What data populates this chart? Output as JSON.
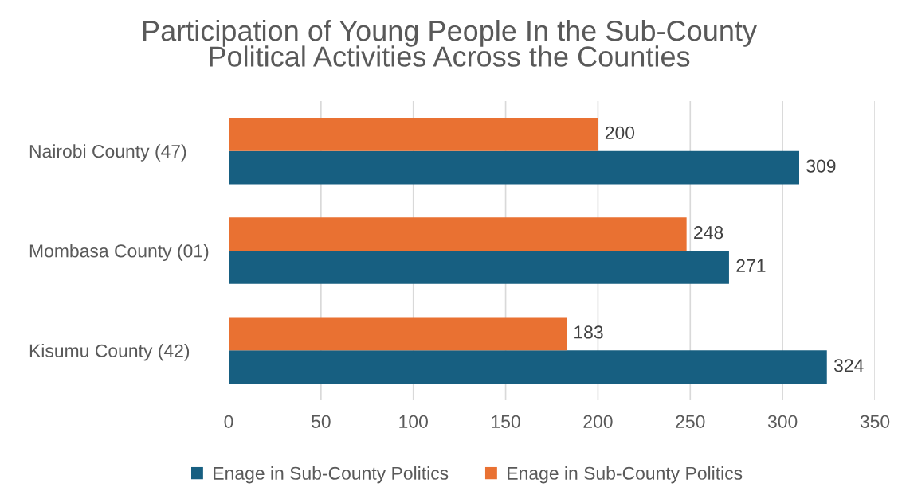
{
  "chart_data": {
    "type": "bar",
    "orientation": "horizontal",
    "title": "Participation of Young People In the Sub-County\nPolitical Activities Across the Counties",
    "categories": [
      "Nairobi County (47)",
      "Mombasa County (01)",
      "Kisumu County (42)"
    ],
    "series": [
      {
        "name": "Enage in Sub-County Politics",
        "color": "#175f81",
        "values": [
          309,
          271,
          324
        ]
      },
      {
        "name": "Enage in Sub-County Politics",
        "color": "#e97132",
        "values": [
          200,
          248,
          183
        ]
      }
    ],
    "xlim": [
      0,
      350
    ],
    "xticks": [
      0,
      50,
      100,
      150,
      200,
      250,
      300,
      350
    ],
    "grid": "x",
    "legend": "bottom",
    "data_labels": true
  }
}
